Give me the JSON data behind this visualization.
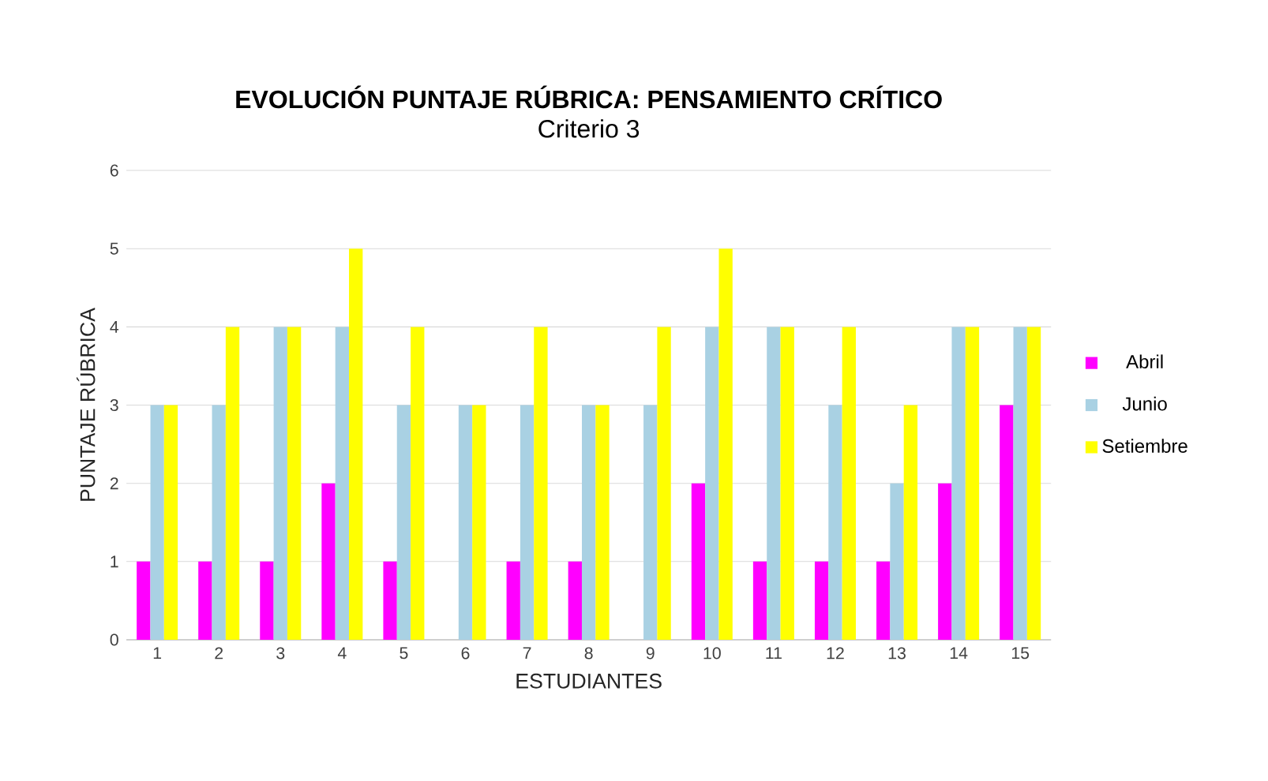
{
  "chart_data": {
    "type": "bar",
    "title": "EVOLUCIÓN PUNTAJE RÚBRICA: PENSAMIENTO CRÍTICO",
    "subtitle": "Criterio 3",
    "xlabel": "ESTUDIANTES",
    "ylabel": "PUNTAJE  RÚBRICA",
    "categories": [
      "1",
      "2",
      "3",
      "4",
      "5",
      "6",
      "7",
      "8",
      "9",
      "10",
      "11",
      "12",
      "13",
      "14",
      "15"
    ],
    "series": [
      {
        "name": "Abril",
        "color": "#ff00ff",
        "values": [
          1,
          1,
          1,
          2,
          1,
          0,
          1,
          1,
          0,
          2,
          1,
          1,
          1,
          2,
          3
        ]
      },
      {
        "name": "Junio",
        "color": "#a9d1e3",
        "values": [
          3,
          3,
          4,
          4,
          3,
          3,
          3,
          3,
          3,
          4,
          4,
          3,
          2,
          4,
          4
        ]
      },
      {
        "name": "Setiembre",
        "color": "#ffff00",
        "values": [
          3,
          4,
          4,
          5,
          4,
          3,
          4,
          3,
          4,
          5,
          4,
          4,
          3,
          4,
          4
        ]
      }
    ],
    "ylim": [
      0,
      6
    ],
    "yticks": [
      0,
      1,
      2,
      3,
      4,
      5,
      6
    ],
    "grid": "y",
    "legend": "right"
  }
}
